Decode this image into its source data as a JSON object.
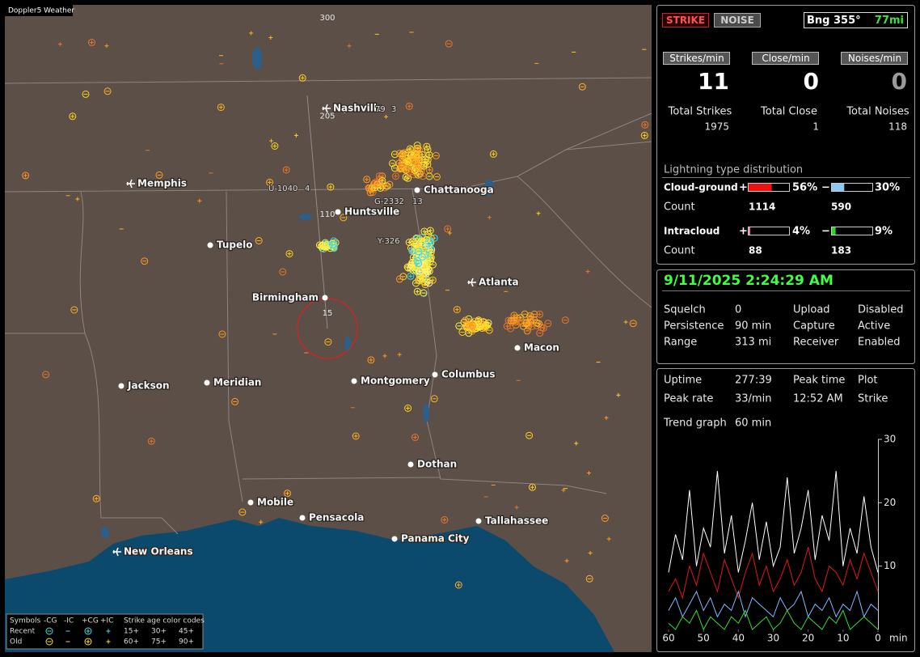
{
  "app_title": "Doppler5 Weather",
  "map": {
    "rings": [
      15,
      110,
      205,
      300
    ],
    "cities": [
      {
        "name": "Nashville",
        "icon": "airport"
      },
      {
        "name": "Memphis",
        "icon": "airport"
      },
      {
        "name": "Chattanooga",
        "icon": "dot"
      },
      {
        "name": "Huntsville",
        "icon": "dot"
      },
      {
        "name": "Tupelo",
        "icon": "dot"
      },
      {
        "name": "Atlanta",
        "icon": "airport"
      },
      {
        "name": "Birmingham",
        "icon": "dot"
      },
      {
        "name": "Macon",
        "icon": "dot"
      },
      {
        "name": "Jackson",
        "icon": "dot"
      },
      {
        "name": "Meridian",
        "icon": "dot"
      },
      {
        "name": "Montgomery",
        "icon": "dot"
      },
      {
        "name": "Columbus",
        "icon": "dot"
      },
      {
        "name": "Dothan",
        "icon": "dot"
      },
      {
        "name": "Mobile",
        "icon": "dot"
      },
      {
        "name": "Pensacola",
        "icon": "dot"
      },
      {
        "name": "Tallahassee",
        "icon": "dot"
      },
      {
        "name": "Panama City",
        "icon": "dot"
      },
      {
        "name": "New Orleans",
        "icon": "airport"
      }
    ],
    "storm_labels": [
      "U-1040",
      "4",
      "G-2332",
      "13",
      "Y-326",
      "79",
      "3"
    ]
  },
  "legend": {
    "symbols_title": "Symbols",
    "symbol_headers": [
      "-CG",
      "-IC",
      "+CG",
      "+IC"
    ],
    "age_title": "Strike age color codes",
    "rows": [
      {
        "name": "Recent",
        "ages": [
          "15+",
          "30+",
          "45+"
        ]
      },
      {
        "name": "Old",
        "ages": [
          "60+",
          "75+",
          "90+"
        ]
      }
    ]
  },
  "strike_panel": {
    "buttons": [
      "STRIKE",
      "NOISE"
    ],
    "bearing": "Bng 355°",
    "distance": "77mi",
    "rates": [
      {
        "label": "Strikes/min",
        "value": 11,
        "total_label": "Total Strikes",
        "total": 1975
      },
      {
        "label": "Close/min",
        "value": 0,
        "total_label": "Total Close",
        "total": 1
      },
      {
        "label": "Noises/min",
        "value": 0,
        "total_label": "Total Noises",
        "total": 118
      }
    ],
    "distribution": {
      "title": "Lightning type distribution",
      "types": [
        {
          "name": "Cloud-ground",
          "count_label": "Count",
          "positive": {
            "sign": "+",
            "pct": {
              "value": 56,
              "label": "56%"
            },
            "count": 1114,
            "color": "#ee1111"
          },
          "negative": {
            "sign": "−",
            "pct": {
              "value": 30,
              "label": "30%"
            },
            "count": 590,
            "color": "#8cc8f0"
          }
        },
        {
          "name": "Intracloud",
          "count_label": "Count",
          "positive": {
            "sign": "+",
            "pct": {
              "value": 4,
              "label": "4%"
            },
            "count": 88,
            "color": "#f07ab0"
          },
          "negative": {
            "sign": "−",
            "pct": {
              "value": 9,
              "label": "9%"
            },
            "count": 183,
            "color": "#22dd22"
          }
        }
      ]
    }
  },
  "status_panel": {
    "datetime": "9/11/2025 2:24:29 AM",
    "rows": [
      [
        "Squelch",
        "0",
        "Upload",
        "Disabled"
      ],
      [
        "Persistence",
        "90 min",
        "Capture",
        "Active"
      ],
      [
        "Range",
        "313 mi",
        "Receiver",
        "Enabled"
      ]
    ]
  },
  "stats_panel": {
    "rows": [
      [
        "Uptime",
        "277:39",
        "Peak time",
        "Plot"
      ],
      [
        "Peak rate",
        "33/min",
        "12:52 AM",
        "Strike"
      ]
    ],
    "trend_label": "Trend graph",
    "trend_window": "60 min",
    "chart_data": {
      "type": "line",
      "x": [
        60,
        58,
        56,
        54,
        52,
        50,
        48,
        46,
        44,
        42,
        40,
        38,
        36,
        34,
        32,
        30,
        28,
        26,
        24,
        22,
        20,
        18,
        16,
        14,
        12,
        10,
        8,
        6,
        4,
        2,
        0
      ],
      "xlim": [
        60,
        0
      ],
      "ylim": [
        0,
        30
      ],
      "xticks": [
        60,
        50,
        40,
        30,
        20,
        10,
        0
      ],
      "yticks": [
        10,
        20,
        30
      ],
      "x_label": "min",
      "series": [
        {
          "color": "#ffffff",
          "values": [
            9,
            15,
            11,
            22,
            10,
            16,
            13,
            25,
            12,
            18,
            9,
            14,
            20,
            11,
            17,
            10,
            13,
            24,
            12,
            16,
            22,
            11,
            18,
            14,
            25,
            10,
            16,
            12,
            21,
            13,
            9
          ]
        },
        {
          "color": "#e01818",
          "values": [
            6,
            8,
            5,
            10,
            7,
            12,
            9,
            6,
            11,
            8,
            5,
            9,
            12,
            7,
            10,
            6,
            8,
            11,
            7,
            9,
            13,
            8,
            6,
            10,
            9,
            7,
            11,
            8,
            12,
            9,
            6
          ]
        },
        {
          "color": "#7fb8ff",
          "values": [
            3,
            5,
            2,
            4,
            6,
            3,
            5,
            2,
            4,
            3,
            6,
            2,
            5,
            4,
            3,
            2,
            5,
            3,
            4,
            6,
            2,
            4,
            3,
            5,
            2,
            4,
            3,
            6,
            2,
            4,
            3
          ]
        },
        {
          "color": "#30e030",
          "values": [
            1,
            0,
            2,
            1,
            3,
            0,
            2,
            1,
            0,
            2,
            1,
            3,
            0,
            1,
            2,
            0,
            1,
            3,
            1,
            0,
            2,
            1,
            0,
            2,
            1,
            3,
            0,
            1,
            2,
            1,
            0
          ]
        }
      ]
    }
  }
}
